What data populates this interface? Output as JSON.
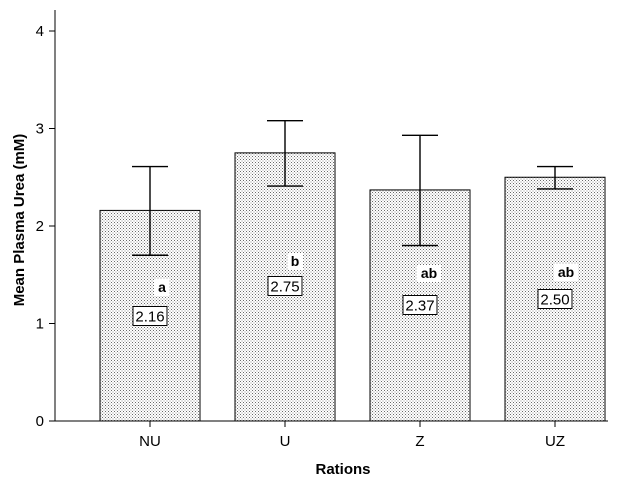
{
  "chart_data": {
    "type": "bar",
    "xlabel": "Rations",
    "ylabel": "Mean Plasma Urea (mM)",
    "categories": [
      "NU",
      "U",
      "Z",
      "UZ"
    ],
    "values": [
      2.16,
      2.75,
      2.37,
      2.5
    ],
    "value_labels": [
      "2.16",
      "2.75",
      "2.37",
      "2.50"
    ],
    "error_upper": [
      2.61,
      3.08,
      2.93,
      2.61
    ],
    "error_lower": [
      1.7,
      2.41,
      1.8,
      2.38
    ],
    "significance_letters": [
      "a",
      "b",
      "ab",
      "ab"
    ],
    "ylim": [
      0,
      4
    ],
    "yticks": [
      "0",
      "1",
      "2",
      "3",
      "4"
    ],
    "grid": false,
    "bar_pattern": "dotted"
  }
}
